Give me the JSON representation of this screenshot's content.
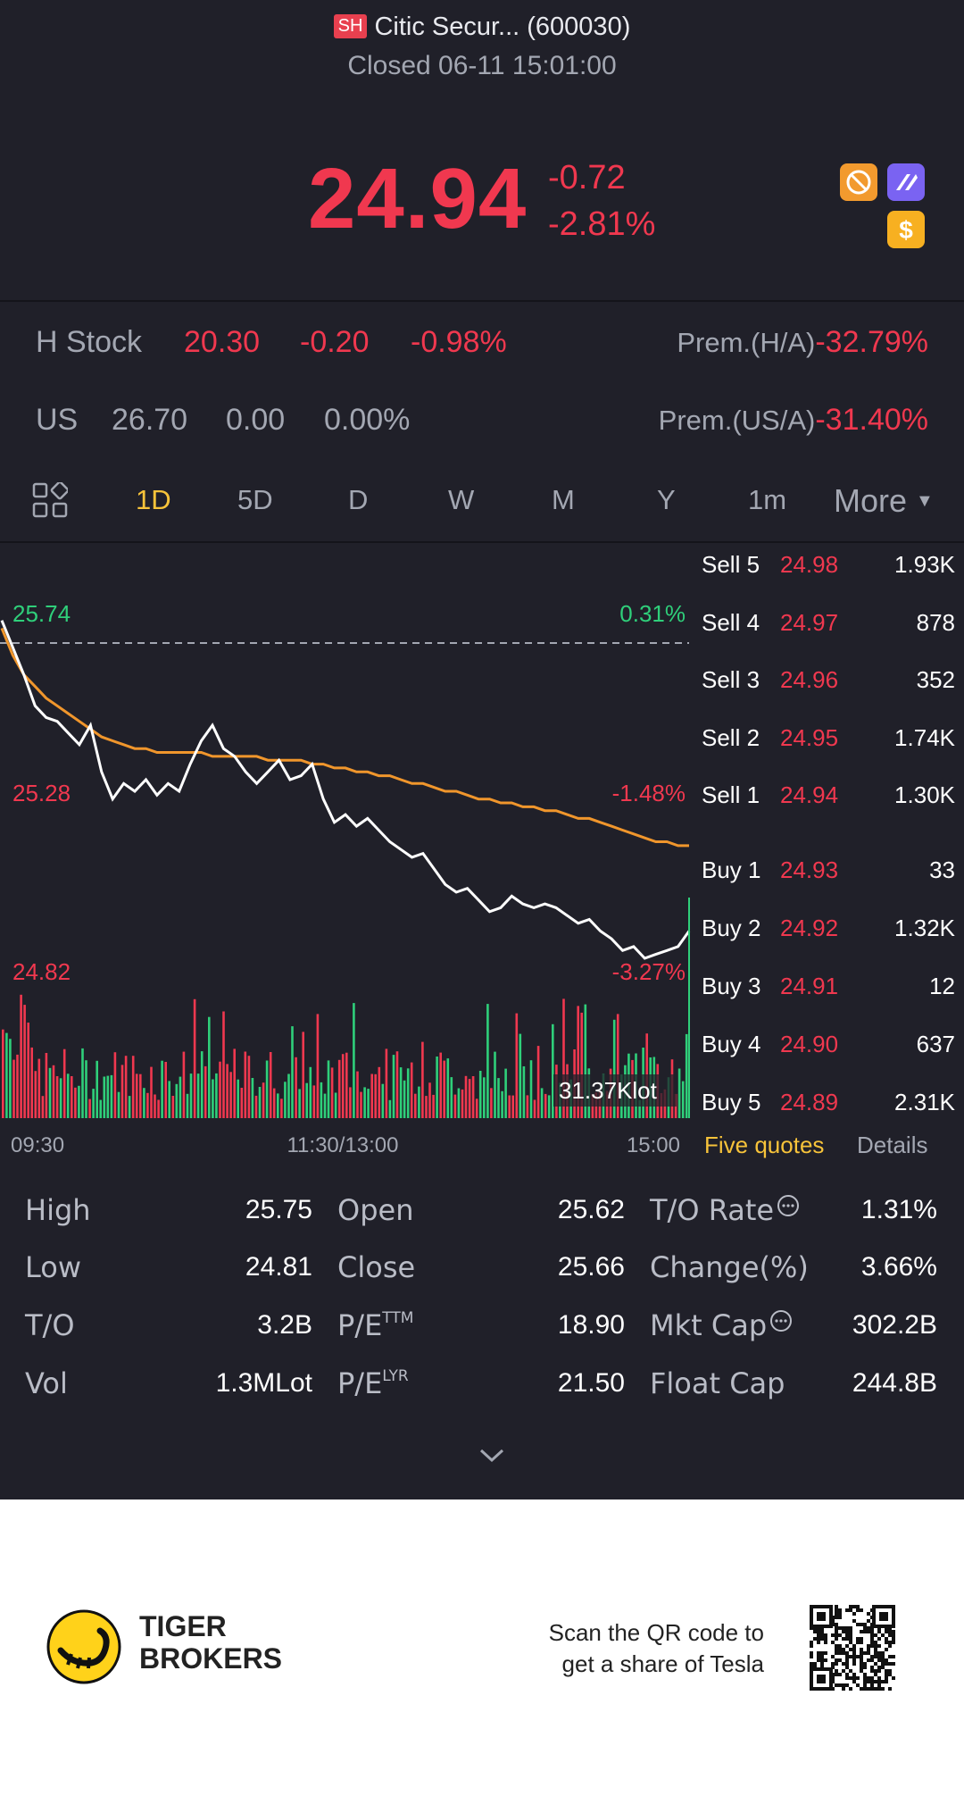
{
  "header": {
    "exchange": "SH",
    "title": "Citic Secur... (600030)",
    "status": "Closed 06-11 15:01:00"
  },
  "quote": {
    "price": "24.94",
    "change": "-0.72",
    "change_pct": "-2.81%"
  },
  "h_stock": {
    "label": "H Stock",
    "price": "20.30",
    "change": "-0.20",
    "pct": "-0.98%",
    "prem_label": "Prem.(H/A)",
    "prem": "-32.79%"
  },
  "us": {
    "label": "US",
    "price": "26.70",
    "change": "0.00",
    "pct": "0.00%",
    "prem_label": "Prem.(US/A)",
    "prem": "-31.40%"
  },
  "tabs": [
    "1D",
    "5D",
    "D",
    "W",
    "M",
    "Y",
    "1m"
  ],
  "tabs_active": "1D",
  "more_label": "More",
  "chart_data": {
    "type": "line",
    "y_labels": {
      "high": "25.74",
      "mid": "25.28",
      "low": "24.82"
    },
    "pct_labels": {
      "high": "0.31%",
      "mid": "-1.48%",
      "low": "-3.27%"
    },
    "x_labels": [
      "09:30",
      "11:30/13:00",
      "15:00"
    ],
    "volume_label": "31.37Klot",
    "ylim": [
      24.82,
      25.74
    ],
    "prev_close": 25.66,
    "price_series": [
      25.72,
      25.65,
      25.58,
      25.5,
      25.47,
      25.46,
      25.43,
      25.4,
      25.45,
      25.33,
      25.26,
      25.3,
      25.28,
      25.31,
      25.27,
      25.3,
      25.28,
      25.35,
      25.41,
      25.45,
      25.39,
      25.37,
      25.33,
      25.3,
      25.33,
      25.36,
      25.31,
      25.32,
      25.35,
      25.26,
      25.2,
      25.22,
      25.19,
      25.21,
      25.18,
      25.15,
      25.13,
      25.11,
      25.12,
      25.08,
      25.04,
      25.02,
      25.03,
      25.0,
      24.97,
      24.98,
      25.01,
      24.99,
      24.98,
      24.99,
      24.98,
      24.96,
      24.94,
      24.95,
      24.92,
      24.9,
      24.87,
      24.88,
      24.85,
      24.86,
      24.87,
      24.88,
      24.92
    ],
    "avg_series": [
      25.7,
      25.63,
      25.58,
      25.55,
      25.52,
      25.5,
      25.48,
      25.46,
      25.44,
      25.42,
      25.41,
      25.4,
      25.39,
      25.39,
      25.38,
      25.38,
      25.38,
      25.38,
      25.38,
      25.37,
      25.37,
      25.37,
      25.37,
      25.37,
      25.36,
      25.36,
      25.36,
      25.36,
      25.35,
      25.35,
      25.34,
      25.34,
      25.33,
      25.33,
      25.32,
      25.32,
      25.31,
      25.3,
      25.3,
      25.29,
      25.28,
      25.28,
      25.27,
      25.26,
      25.26,
      25.25,
      25.25,
      25.24,
      25.24,
      25.23,
      25.23,
      25.22,
      25.21,
      25.21,
      25.2,
      25.19,
      25.18,
      25.17,
      25.16,
      25.15,
      25.15,
      25.14,
      25.14
    ],
    "series": [
      {
        "values_ref": "price_series"
      },
      {
        "values_ref": "avg_series"
      }
    ],
    "grid": false
  },
  "order_book": {
    "sells": [
      {
        "label": "Sell 5",
        "price": "24.98",
        "vol": "1.93K"
      },
      {
        "label": "Sell 4",
        "price": "24.97",
        "vol": "878"
      },
      {
        "label": "Sell 3",
        "price": "24.96",
        "vol": "352"
      },
      {
        "label": "Sell 2",
        "price": "24.95",
        "vol": "1.74K"
      },
      {
        "label": "Sell 1",
        "price": "24.94",
        "vol": "1.30K"
      }
    ],
    "buys": [
      {
        "label": "Buy 1",
        "price": "24.93",
        "vol": "33"
      },
      {
        "label": "Buy 2",
        "price": "24.92",
        "vol": "1.32K"
      },
      {
        "label": "Buy 3",
        "price": "24.91",
        "vol": "12"
      },
      {
        "label": "Buy 4",
        "price": "24.90",
        "vol": "637"
      },
      {
        "label": "Buy 5",
        "price": "24.89",
        "vol": "2.31K"
      }
    ],
    "tab_quotes": "Five quotes",
    "tab_details": "Details"
  },
  "stats": {
    "col1": [
      {
        "label": "High",
        "value": "25.75"
      },
      {
        "label": "Low",
        "value": "24.81"
      },
      {
        "label": "T/O",
        "value": "3.2B"
      },
      {
        "label": "Vol",
        "value": "1.3MLot"
      }
    ],
    "col2": [
      {
        "label": "Open",
        "value": "25.62",
        "sup": ""
      },
      {
        "label": "Close",
        "value": "25.66",
        "sup": ""
      },
      {
        "label": "P/E",
        "value": "18.90",
        "sup": "TTM"
      },
      {
        "label": "P/E",
        "value": "21.50",
        "sup": "LYR"
      }
    ],
    "col3": [
      {
        "label": "T/O Rate",
        "value": "1.31%"
      },
      {
        "label": "Change(%)",
        "value": "3.66%"
      },
      {
        "label": "Mkt Cap",
        "value": "302.2B"
      },
      {
        "label": "Float Cap",
        "value": "244.8B"
      }
    ]
  },
  "footer": {
    "brand_line1": "TIGER",
    "brand_line2": "BROKERS",
    "promo_line1": "Scan the QR code to",
    "promo_line2": "get a share of Tesla"
  },
  "colors": {
    "up": "#f0384f",
    "down": "#2fcf7a",
    "accent": "#f7c33a",
    "avg": "#f0962c",
    "bg": "#202029"
  }
}
